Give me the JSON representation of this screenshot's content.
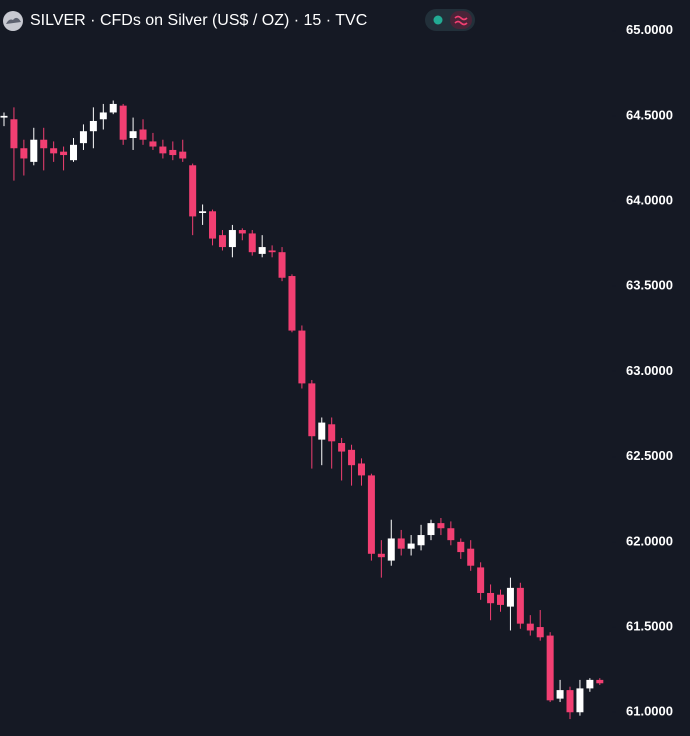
{
  "chart_data": {
    "type": "candlestick",
    "title": "SILVER · CFDs on Silver (US$ / OZ) · 15 · TVC",
    "up_color": "#ffffff",
    "down_color": "#f23f72",
    "ylim": [
      60.89,
      65.18
    ],
    "yticks": [
      {
        "value": 61,
        "label": "61.0000"
      },
      {
        "value": 61.5,
        "label": "61.5000"
      },
      {
        "value": 62,
        "label": "62.0000"
      },
      {
        "value": 62.5,
        "label": "62.5000"
      },
      {
        "value": 63,
        "label": "63.0000"
      },
      {
        "value": 63.5,
        "label": "63.5000"
      },
      {
        "value": 64,
        "label": "64.0000"
      },
      {
        "value": 64.5,
        "label": "64.5000"
      },
      {
        "value": 65,
        "label": "65.0000"
      }
    ],
    "categories": [
      null,
      null,
      null,
      null,
      null,
      null,
      null,
      null,
      null,
      null,
      null,
      null,
      null,
      null,
      null,
      null,
      null,
      null,
      null,
      null,
      null,
      null,
      null,
      null,
      null,
      null,
      null,
      null,
      null,
      null,
      null,
      null,
      null,
      null,
      null,
      null,
      null,
      null,
      null,
      null,
      null,
      null,
      null,
      null,
      null,
      null,
      null,
      null,
      null,
      null,
      null,
      null,
      null,
      null,
      null,
      null,
      null,
      null,
      null,
      null,
      null
    ],
    "open": [
      64.49,
      64.48,
      64.31,
      64.23,
      64.36,
      64.31,
      64.29,
      64.24,
      64.34,
      64.41,
      64.48,
      64.52,
      64.56,
      64.37,
      64.42,
      64.35,
      64.32,
      64.3,
      64.29,
      64.21,
      63.93,
      63.94,
      63.8,
      63.73,
      63.83,
      63.81,
      63.69,
      63.71,
      63.7,
      63.56,
      63.24,
      62.93,
      62.6,
      62.69,
      62.58,
      62.54,
      62.46,
      62.39,
      61.93,
      61.89,
      62.02,
      61.96,
      61.98,
      62.04,
      62.11,
      62.08,
      62.0,
      61.96,
      61.85,
      61.7,
      61.69,
      61.62,
      61.73,
      61.52,
      61.5,
      61.45,
      61.08,
      61.13,
      61.0,
      61.14,
      61.19
    ],
    "high": [
      64.52,
      64.55,
      64.36,
      64.43,
      64.43,
      64.35,
      64.32,
      64.37,
      64.45,
      64.55,
      64.57,
      64.59,
      64.57,
      64.49,
      64.48,
      64.4,
      64.36,
      64.35,
      64.36,
      64.22,
      63.98,
      63.95,
      63.83,
      63.86,
      63.84,
      63.83,
      63.8,
      63.74,
      63.73,
      63.57,
      63.27,
      62.95,
      62.73,
      62.73,
      62.61,
      62.57,
      62.49,
      62.4,
      62.01,
      62.13,
      62.07,
      62.04,
      62.1,
      62.13,
      62.14,
      62.12,
      62.02,
      62.01,
      61.88,
      61.75,
      61.72,
      61.79,
      61.76,
      61.57,
      61.6,
      61.47,
      61.19,
      61.15,
      61.19,
      61.2,
      61.2
    ],
    "low": [
      64.44,
      64.12,
      64.15,
      64.21,
      64.18,
      64.23,
      64.18,
      64.23,
      64.3,
      64.31,
      64.42,
      64.51,
      64.33,
      64.3,
      64.33,
      64.3,
      64.25,
      64.24,
      64.23,
      63.8,
      63.86,
      63.74,
      63.71,
      63.67,
      63.77,
      63.68,
      63.67,
      63.67,
      63.53,
      63.23,
      62.9,
      62.43,
      62.45,
      62.43,
      62.36,
      62.33,
      62.33,
      61.89,
      61.79,
      61.86,
      61.92,
      61.92,
      61.95,
      62.01,
      62.04,
      61.98,
      61.9,
      61.83,
      61.66,
      61.54,
      61.59,
      61.48,
      61.49,
      61.45,
      61.42,
      61.06,
      61.06,
      60.96,
      60.98,
      61.12,
      61.16
    ],
    "close": [
      64.5,
      64.31,
      64.25,
      64.36,
      64.31,
      64.28,
      64.27,
      64.33,
      64.41,
      64.47,
      64.52,
      64.57,
      64.36,
      64.41,
      64.36,
      64.32,
      64.28,
      64.27,
      64.25,
      63.91,
      63.94,
      63.78,
      63.73,
      63.83,
      63.81,
      63.7,
      63.73,
      63.7,
      63.55,
      63.24,
      62.93,
      62.62,
      62.7,
      62.59,
      62.53,
      62.45,
      62.39,
      61.93,
      61.91,
      62.02,
      61.96,
      61.99,
      62.04,
      62.11,
      62.08,
      62.01,
      61.94,
      61.86,
      61.7,
      61.64,
      61.63,
      61.73,
      61.52,
      61.48,
      61.44,
      61.07,
      61.13,
      61.0,
      61.14,
      61.19,
      61.17
    ]
  }
}
